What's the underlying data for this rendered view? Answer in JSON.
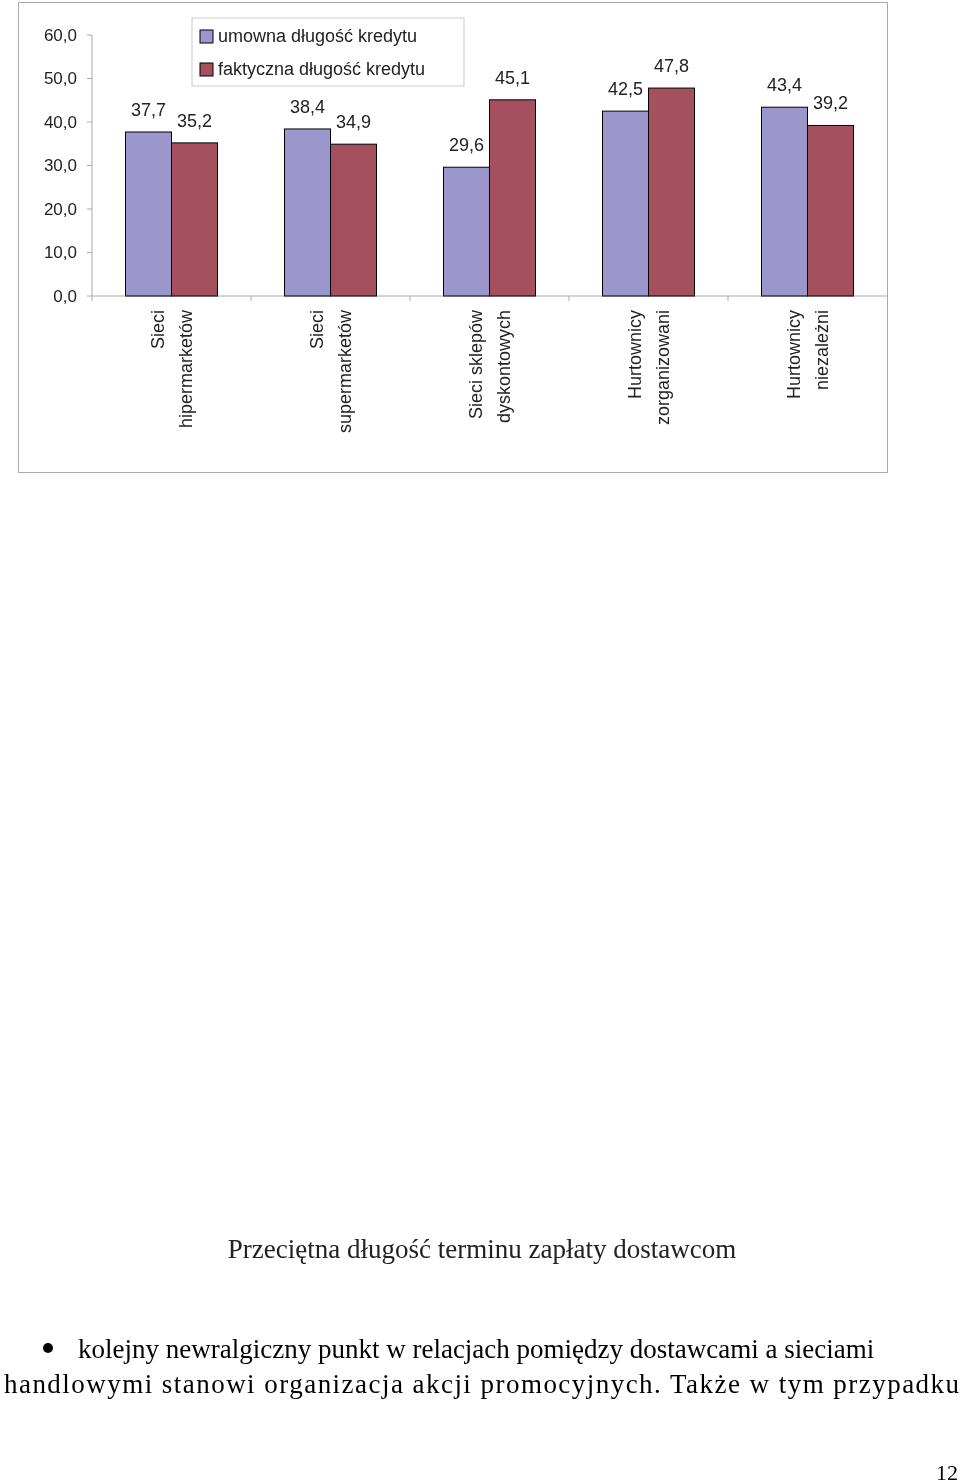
{
  "chart_data": {
    "type": "bar",
    "title": "Przeciętna długość terminu zapłaty dostawcom",
    "categories": [
      "Sieci hipermarketów",
      "Sieci supermarketów",
      "Sieci sklepów dyskontowych",
      "Hurtownicy zorganizowani",
      "Hurtownicy niezależni"
    ],
    "series": [
      {
        "name": "umowna długość kredytu",
        "color": "#9b96cc",
        "values": [
          37.7,
          38.4,
          29.6,
          42.5,
          43.4
        ]
      },
      {
        "name": "faktyczna długość kredytu",
        "color": "#a5505f",
        "values": [
          35.2,
          34.9,
          45.1,
          47.8,
          39.2
        ]
      }
    ],
    "ylim": [
      0,
      60
    ],
    "yticks": [
      {
        "value": 0,
        "label": "0,0"
      },
      {
        "value": 10,
        "label": "10,0"
      },
      {
        "value": 20,
        "label": "20,0"
      },
      {
        "value": 30,
        "label": "30,0"
      },
      {
        "value": 40,
        "label": "40,0"
      },
      {
        "value": 50,
        "label": "50,0"
      },
      {
        "value": 60,
        "label": "60,0"
      }
    ],
    "value_labels": [
      [
        "37,7",
        "38,4",
        "29,6",
        "42,5",
        "43,4"
      ],
      [
        "35,2",
        "34,9",
        "45,1",
        "47,8",
        "39,2"
      ]
    ],
    "legend": "top left",
    "annotations": [
      "kolejny newralgiczny punkt w relacjach pomiędzy dostawcami a sieciami",
      "handlowymi stanowi organizacja akcji promocyjnych. Także w tym przypadku",
      "12"
    ]
  }
}
